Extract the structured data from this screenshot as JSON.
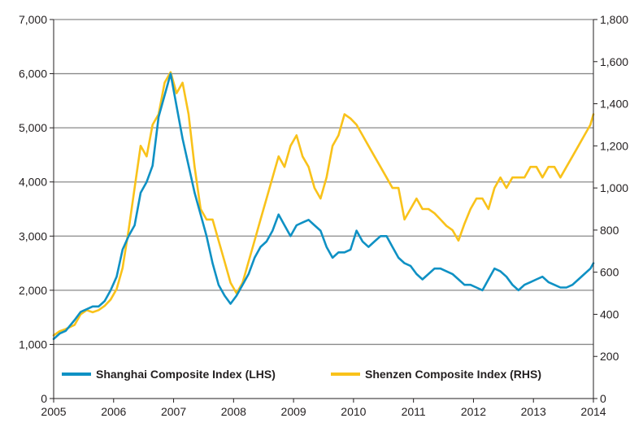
{
  "chart_data": {
    "type": "line",
    "title": "",
    "xlabel": "",
    "ylabel": "",
    "y2label": "",
    "xlim": [
      2005,
      2014
    ],
    "ylim": [
      0,
      7000
    ],
    "y2lim": [
      0,
      1800
    ],
    "x_ticks": [
      "2005",
      "2006",
      "2007",
      "2008",
      "2009",
      "2010",
      "2011",
      "2012",
      "2013",
      "2014"
    ],
    "y_ticks": [
      "0",
      "1,000",
      "2,000",
      "3,000",
      "4,000",
      "5,000",
      "6,000",
      "7,000"
    ],
    "y2_ticks": [
      "0",
      "200",
      "400",
      "600",
      "800",
      "1,000",
      "1,200",
      "1,400",
      "1,600",
      "1,800"
    ],
    "grid": true,
    "legend_position": "bottom-left",
    "series": [
      {
        "name": "Shanghai Composite Index (LHS)",
        "axis": "left",
        "color": "#0f91c4",
        "x": [
          2005.0,
          2005.1,
          2005.2,
          2005.35,
          2005.45,
          2005.55,
          2005.65,
          2005.75,
          2005.85,
          2005.95,
          2006.05,
          2006.15,
          2006.25,
          2006.35,
          2006.45,
          2006.55,
          2006.65,
          2006.75,
          2006.85,
          2006.95,
          2007.05,
          2007.15,
          2007.25,
          2007.35,
          2007.45,
          2007.55,
          2007.65,
          2007.75,
          2007.85,
          2007.95,
          2008.05,
          2008.15,
          2008.25,
          2008.35,
          2008.45,
          2008.55,
          2008.65,
          2008.75,
          2008.85,
          2008.95,
          2009.05,
          2009.15,
          2009.25,
          2009.35,
          2009.45,
          2009.55,
          2009.65,
          2009.75,
          2009.85,
          2009.95,
          2010.05,
          2010.15,
          2010.25,
          2010.35,
          2010.45,
          2010.55,
          2010.65,
          2010.75,
          2010.85,
          2010.95,
          2011.05,
          2011.15,
          2011.25,
          2011.35,
          2011.45,
          2011.55,
          2011.65,
          2011.75,
          2011.85,
          2011.95,
          2012.05,
          2012.15,
          2012.25,
          2012.35,
          2012.45,
          2012.55,
          2012.65,
          2012.75,
          2012.85,
          2012.95,
          2013.05,
          2013.15,
          2013.25,
          2013.35,
          2013.45,
          2013.55,
          2013.65,
          2013.75,
          2013.85,
          2013.95,
          2014.0
        ],
        "values": [
          1100,
          1200,
          1250,
          1450,
          1600,
          1650,
          1700,
          1700,
          1800,
          2000,
          2250,
          2750,
          3000,
          3200,
          3800,
          4000,
          4300,
          5200,
          5600,
          6000,
          5400,
          4800,
          4300,
          3800,
          3400,
          3000,
          2500,
          2100,
          1900,
          1750,
          1900,
          2100,
          2300,
          2600,
          2800,
          2900,
          3100,
          3400,
          3200,
          3000,
          3200,
          3250,
          3300,
          3200,
          3100,
          2800,
          2600,
          2700,
          2700,
          2750,
          3100,
          2900,
          2800,
          2900,
          3000,
          3000,
          2800,
          2600,
          2500,
          2450,
          2300,
          2200,
          2300,
          2400,
          2400,
          2350,
          2300,
          2200,
          2100,
          2100,
          2050,
          2000,
          2200,
          2400,
          2350,
          2250,
          2100,
          2000,
          2100,
          2150,
          2200,
          2250,
          2150,
          2100,
          2050,
          2050,
          2100,
          2200,
          2300,
          2400,
          2500
        ]
      },
      {
        "name": "Shenzen Composite Index (RHS)",
        "axis": "right",
        "color": "#f9c21a",
        "x": [
          2005.0,
          2005.1,
          2005.2,
          2005.35,
          2005.45,
          2005.55,
          2005.65,
          2005.75,
          2005.85,
          2005.95,
          2006.05,
          2006.15,
          2006.25,
          2006.35,
          2006.45,
          2006.55,
          2006.65,
          2006.75,
          2006.85,
          2006.95,
          2007.05,
          2007.15,
          2007.25,
          2007.35,
          2007.45,
          2007.55,
          2007.65,
          2007.75,
          2007.85,
          2007.95,
          2008.05,
          2008.15,
          2008.25,
          2008.35,
          2008.45,
          2008.55,
          2008.65,
          2008.75,
          2008.85,
          2008.95,
          2009.05,
          2009.15,
          2009.25,
          2009.35,
          2009.45,
          2009.55,
          2009.65,
          2009.75,
          2009.85,
          2009.95,
          2010.05,
          2010.15,
          2010.25,
          2010.35,
          2010.45,
          2010.55,
          2010.65,
          2010.75,
          2010.85,
          2010.95,
          2011.05,
          2011.15,
          2011.25,
          2011.35,
          2011.45,
          2011.55,
          2011.65,
          2011.75,
          2011.85,
          2011.95,
          2012.05,
          2012.15,
          2012.25,
          2012.35,
          2012.45,
          2012.55,
          2012.65,
          2012.75,
          2012.85,
          2012.95,
          2013.05,
          2013.15,
          2013.25,
          2013.35,
          2013.45,
          2013.55,
          2013.65,
          2013.75,
          2013.85,
          2013.95,
          2014.0
        ],
        "values": [
          300,
          320,
          330,
          350,
          400,
          420,
          410,
          420,
          440,
          470,
          520,
          620,
          800,
          1000,
          1200,
          1150,
          1300,
          1350,
          1500,
          1550,
          1450,
          1500,
          1350,
          1100,
          900,
          850,
          850,
          750,
          650,
          550,
          500,
          550,
          650,
          750,
          850,
          950,
          1050,
          1150,
          1100,
          1200,
          1250,
          1150,
          1100,
          1000,
          950,
          1050,
          1200,
          1250,
          1350,
          1330,
          1300,
          1250,
          1200,
          1150,
          1100,
          1050,
          1000,
          1000,
          850,
          900,
          950,
          900,
          900,
          880,
          850,
          820,
          800,
          750,
          830,
          900,
          950,
          950,
          900,
          1000,
          1050,
          1000,
          1050,
          1050,
          1050,
          1100,
          1100,
          1050,
          1100,
          1100,
          1050,
          1100,
          1150,
          1200,
          1250,
          1300,
          1350
        ]
      }
    ]
  }
}
